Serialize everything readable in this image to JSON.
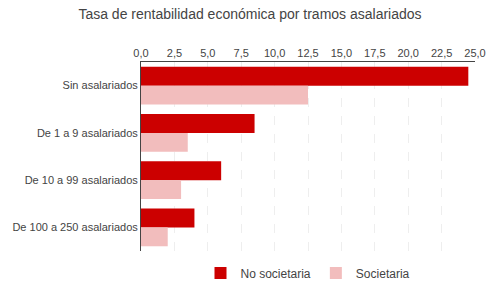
{
  "chart_data": {
    "type": "bar",
    "orientation": "horizontal",
    "title": "Tasa de rentabilidad económica por tramos asalariados",
    "categories": [
      "Sin asalariados",
      "De 1 a 9 asalariados",
      "De 10 a 99 asalariados",
      "De 100 a 250 asalariados"
    ],
    "series": [
      {
        "name": "No societaria",
        "color": "#CC0000",
        "values": [
          24.5,
          8.5,
          6.0,
          4.0
        ]
      },
      {
        "name": "Societaria",
        "color": "#F2BDBD",
        "values": [
          12.5,
          3.5,
          3.0,
          2.0
        ]
      }
    ],
    "xlim": [
      0,
      25
    ],
    "xticks": [
      {
        "value": 0.0,
        "label": "0,0"
      },
      {
        "value": 2.5,
        "label": "2,5"
      },
      {
        "value": 5.0,
        "label": "5,0"
      },
      {
        "value": 7.5,
        "label": "7,5"
      },
      {
        "value": 10.0,
        "label": "10,0"
      },
      {
        "value": 12.5,
        "label": "12,5"
      },
      {
        "value": 15.0,
        "label": "15,0"
      },
      {
        "value": 17.5,
        "label": "17,5"
      },
      {
        "value": 20.0,
        "label": "20,0"
      },
      {
        "value": 22.5,
        "label": "22,5"
      },
      {
        "value": 25.0,
        "label": "25,0"
      }
    ],
    "grid": true,
    "legend": "bottom"
  }
}
